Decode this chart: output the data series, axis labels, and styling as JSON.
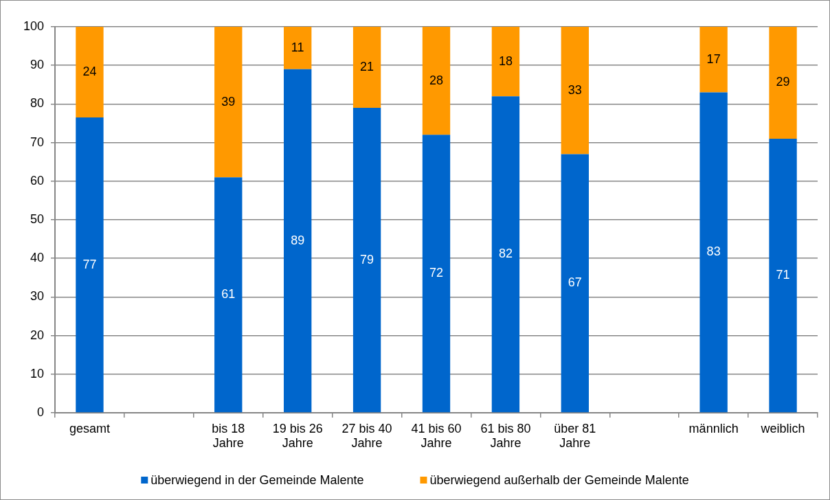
{
  "chart_data": {
    "type": "bar",
    "stacked": true,
    "categories": [
      "gesamt",
      null,
      "bis 18 Jahre",
      "19 bis 26 Jahre",
      "27 bis 40 Jahre",
      "41 bis 60 Jahre",
      "61 bis 80 Jahre",
      "über 81 Jahre",
      null,
      "männlich",
      "weiblich"
    ],
    "series": [
      {
        "name": "überwiegend in der Gemeinde Malente",
        "color": "#0066cc",
        "values": [
          76.5,
          null,
          61,
          89,
          79,
          72,
          82,
          67,
          null,
          83,
          71
        ],
        "value_labels": [
          "77",
          null,
          "61",
          "89",
          "79",
          "72",
          "82",
          "67",
          null,
          "83",
          "71"
        ]
      },
      {
        "name": "überwiegend außerhalb der Gemeinde Malente",
        "color": "#ff9900",
        "values": [
          23.5,
          null,
          39,
          11,
          21,
          28,
          18,
          33,
          null,
          17,
          29
        ],
        "value_labels": [
          "24",
          null,
          "39",
          "11",
          "21",
          "28",
          "18",
          "33",
          null,
          "17",
          "29"
        ]
      }
    ],
    "ylim": [
      0,
      100
    ],
    "yticks": [
      0,
      10,
      20,
      30,
      40,
      50,
      60,
      70,
      80,
      90,
      100
    ],
    "grid": "y",
    "legend": "bottom"
  }
}
